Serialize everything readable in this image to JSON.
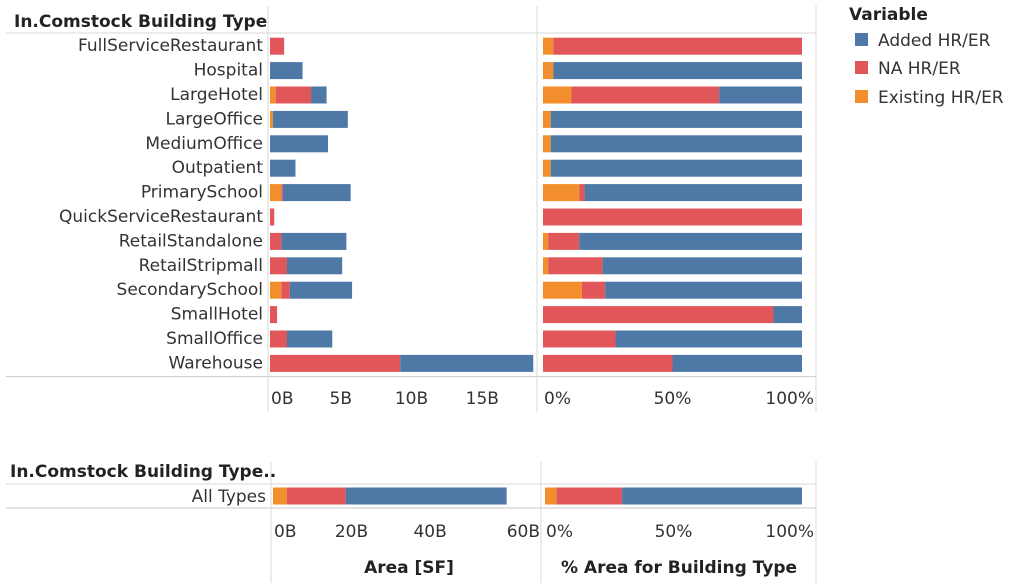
{
  "chart_data": {
    "type": "bar",
    "stacked": true,
    "header": "In.Comstock Building Type",
    "categories": [
      "FullServiceRestaurant",
      "Hospital",
      "LargeHotel",
      "LargeOffice",
      "MediumOffice",
      "Outpatient",
      "PrimarySchool",
      "QuickServiceRestaurant",
      "RetailStandalone",
      "RetailStripmall",
      "SecondarySchool",
      "SmallHotel",
      "SmallOffice",
      "Warehouse"
    ],
    "legend": {
      "title": "Variable",
      "position": "top-right",
      "items": [
        {
          "name": "Added HR/ER",
          "color": "#4e79a7"
        },
        {
          "name": "NA HR/ER",
          "color": "#e15759"
        },
        {
          "name": "Existing HR/ER",
          "color": "#f28e2b"
        }
      ]
    },
    "panels": [
      {
        "id": "area",
        "ticks": [
          "0B",
          "5B",
          "10B",
          "15B"
        ],
        "tick_values": [
          0,
          5,
          10,
          15
        ],
        "xlim": [
          0,
          18.3
        ],
        "series": [
          {
            "name": "Existing HR/ER",
            "values": [
              0,
              0,
              0.4,
              0.2,
              0,
              0,
              0.8,
              0,
              0,
              0,
              0.8,
              0,
              0,
              0
            ]
          },
          {
            "name": "NA HR/ER",
            "values": [
              1.0,
              0,
              2.5,
              0,
              0,
              0,
              0.1,
              0.3,
              0.8,
              1.2,
              0.6,
              0.5,
              1.2,
              9.2
            ]
          },
          {
            "name": "Added HR/ER",
            "values": [
              0,
              2.3,
              1.1,
              5.3,
              4.1,
              1.8,
              4.8,
              0,
              4.6,
              3.9,
              4.4,
              0,
              3.2,
              9.4
            ]
          }
        ]
      },
      {
        "id": "percent",
        "ticks": [
          "0%",
          "50%",
          "100%"
        ],
        "tick_values": [
          0,
          50,
          100
        ],
        "xlim": [
          0,
          100
        ],
        "series": [
          {
            "name": "Existing HR/ER",
            "values": [
              4,
              4,
              11,
              3,
              3,
              3,
              14,
              0,
              2,
              2,
              15,
              0,
              0,
              0
            ]
          },
          {
            "name": "NA HR/ER",
            "values": [
              96,
              0,
              57,
              0,
              0,
              0,
              2,
              100,
              12,
              21,
              9,
              89,
              28,
              50
            ]
          },
          {
            "name": "Added HR/ER",
            "values": [
              0,
              96,
              32,
              97,
              97,
              97,
              84,
              0,
              86,
              77,
              76,
              11,
              72,
              50
            ]
          }
        ]
      }
    ],
    "summary": {
      "header": "In.Comstock Building Type..",
      "category": "All Types",
      "panels": [
        {
          "id": "area",
          "ticks": [
            "0B",
            "20B",
            "40B",
            "60B"
          ],
          "tick_values": [
            0,
            20,
            40,
            60
          ],
          "xlim": [
            0,
            65.7
          ],
          "values": {
            "Existing HR/ER": 3.5,
            "NA HR/ER": 15.0,
            "Added HR/ER": 41.0
          },
          "axis_title": "Area [SF]"
        },
        {
          "id": "percent",
          "ticks": [
            "0%",
            "50%",
            "100%"
          ],
          "tick_values": [
            0,
            50,
            100
          ],
          "xlim": [
            0,
            100
          ],
          "values": {
            "Existing HR/ER": 4.5,
            "NA HR/ER": 25.5,
            "Added HR/ER": 70.0
          },
          "axis_title": "% Area for Building Type"
        }
      ]
    }
  }
}
